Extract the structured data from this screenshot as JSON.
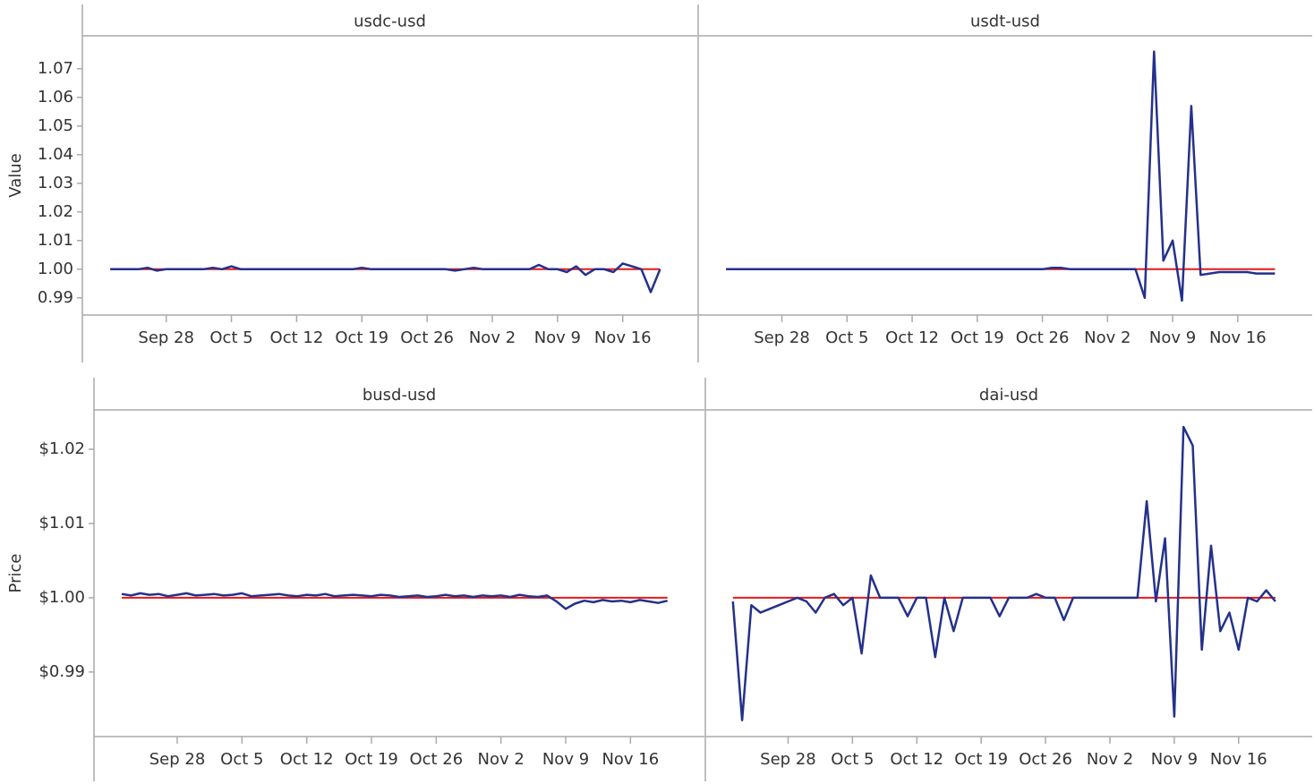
{
  "chart_data": [
    {
      "type": "line",
      "title": "usdc-usd",
      "ylabel": "Value",
      "color": "#24318b",
      "reference": 1,
      "reference_color": "#e41a1c",
      "x": [
        "Sep 22",
        "Sep 23",
        "Sep 24",
        "Sep 25",
        "Sep 26",
        "Sep 27",
        "Sep 28",
        "Sep 29",
        "Sep 30",
        "Oct 1",
        "Oct 2",
        "Oct 3",
        "Oct 4",
        "Oct 5",
        "Oct 6",
        "Oct 7",
        "Oct 8",
        "Oct 9",
        "Oct 10",
        "Oct 11",
        "Oct 12",
        "Oct 13",
        "Oct 14",
        "Oct 15",
        "Oct 16",
        "Oct 17",
        "Oct 18",
        "Oct 19",
        "Oct 20",
        "Oct 21",
        "Oct 22",
        "Oct 23",
        "Oct 24",
        "Oct 25",
        "Oct 26",
        "Oct 27",
        "Oct 28",
        "Oct 29",
        "Oct 30",
        "Oct 31",
        "Nov 1",
        "Nov 2",
        "Nov 3",
        "Nov 4",
        "Nov 5",
        "Nov 6",
        "Nov 7",
        "Nov 8",
        "Nov 9",
        "Nov 10",
        "Nov 11",
        "Nov 12",
        "Nov 13",
        "Nov 14",
        "Nov 15",
        "Nov 16",
        "Nov 17",
        "Nov 18",
        "Nov 19",
        "Nov 20"
      ],
      "values": [
        1,
        1,
        1,
        1,
        1.0005,
        0.9995,
        1,
        1,
        1,
        1,
        1,
        1.0005,
        1,
        1.001,
        1,
        1,
        1,
        1,
        1,
        1,
        1,
        1,
        1,
        1,
        1,
        1,
        1,
        1.0005,
        1,
        1,
        1,
        1,
        1,
        1,
        1,
        1,
        1,
        0.9995,
        1,
        1.0005,
        1,
        1,
        1,
        1,
        1,
        1,
        1.0015,
        1,
        1,
        0.999,
        1.001,
        0.998,
        1,
        1,
        0.999,
        1.002,
        1.001,
        1,
        0.992,
        1
      ],
      "xlim": [
        "Sep 19",
        "Nov 24"
      ],
      "xticks": [
        "Sep 28",
        "Oct 5",
        "Oct 12",
        "Oct 19",
        "Oct 26",
        "Nov 2",
        "Nov 9",
        "Nov 16"
      ],
      "ylim": [
        0.984,
        1.0815
      ],
      "yticks": [
        0.99,
        {
          "value": 1,
          "label": "1.00"
        },
        1.01,
        1.02,
        1.03,
        1.04,
        1.05,
        1.06,
        1.07
      ]
    },
    {
      "type": "line",
      "title": "usdt-usd",
      "color": "#24318b",
      "reference": 1,
      "reference_color": "#e41a1c",
      "x": [
        "Sep 22",
        "Sep 23",
        "Sep 24",
        "Sep 25",
        "Sep 26",
        "Sep 27",
        "Sep 28",
        "Sep 29",
        "Sep 30",
        "Oct 1",
        "Oct 2",
        "Oct 3",
        "Oct 4",
        "Oct 5",
        "Oct 6",
        "Oct 7",
        "Oct 8",
        "Oct 9",
        "Oct 10",
        "Oct 11",
        "Oct 12",
        "Oct 13",
        "Oct 14",
        "Oct 15",
        "Oct 16",
        "Oct 17",
        "Oct 18",
        "Oct 19",
        "Oct 20",
        "Oct 21",
        "Oct 22",
        "Oct 23",
        "Oct 24",
        "Oct 25",
        "Oct 26",
        "Oct 27",
        "Oct 28",
        "Oct 29",
        "Oct 30",
        "Oct 31",
        "Nov 1",
        "Nov 2",
        "Nov 3",
        "Nov 4",
        "Nov 5",
        "Nov 6",
        "Nov 7",
        "Nov 8",
        "Nov 9",
        "Nov 10",
        "Nov 11",
        "Nov 12",
        "Nov 13",
        "Nov 14",
        "Nov 15",
        "Nov 16",
        "Nov 17",
        "Nov 18",
        "Nov 19",
        "Nov 20"
      ],
      "values": [
        1,
        1,
        1,
        1,
        1,
        1,
        1,
        1,
        1,
        1,
        1,
        1,
        1,
        1,
        1,
        1,
        1,
        1,
        1,
        1,
        1,
        1,
        1,
        1,
        1,
        1,
        1,
        1,
        1,
        1,
        1,
        1,
        1,
        1,
        1,
        1.0005,
        1.0005,
        1,
        1,
        1,
        1,
        1,
        1,
        1,
        1,
        0.99,
        1.076,
        1.003,
        1.01,
        0.989,
        1.057,
        0.998,
        0.9985,
        0.999,
        0.999,
        0.999,
        0.999,
        0.9985,
        0.9985,
        0.9985
      ],
      "xlim": [
        "Sep 19",
        "Nov 24"
      ],
      "xticks": [
        "Sep 28",
        "Oct 5",
        "Oct 12",
        "Oct 19",
        "Oct 26",
        "Nov 2",
        "Nov 9",
        "Nov 16"
      ],
      "ylim": [
        0.984,
        1.0815
      ]
    },
    {
      "type": "line",
      "title": "busd-usd",
      "ylabel": "Price",
      "color": "#24318b",
      "reference": 1,
      "reference_color": "#e41a1c",
      "x": [
        "Sep 22",
        "Sep 23",
        "Sep 24",
        "Sep 25",
        "Sep 26",
        "Sep 27",
        "Sep 28",
        "Sep 29",
        "Sep 30",
        "Oct 1",
        "Oct 2",
        "Oct 3",
        "Oct 4",
        "Oct 5",
        "Oct 6",
        "Oct 7",
        "Oct 8",
        "Oct 9",
        "Oct 10",
        "Oct 11",
        "Oct 12",
        "Oct 13",
        "Oct 14",
        "Oct 15",
        "Oct 16",
        "Oct 17",
        "Oct 18",
        "Oct 19",
        "Oct 20",
        "Oct 21",
        "Oct 22",
        "Oct 23",
        "Oct 24",
        "Oct 25",
        "Oct 26",
        "Oct 27",
        "Oct 28",
        "Oct 29",
        "Oct 30",
        "Oct 31",
        "Nov 1",
        "Nov 2",
        "Nov 3",
        "Nov 4",
        "Nov 5",
        "Nov 6",
        "Nov 7",
        "Nov 8",
        "Nov 9",
        "Nov 10",
        "Nov 11",
        "Nov 12",
        "Nov 13",
        "Nov 14",
        "Nov 15",
        "Nov 16",
        "Nov 17",
        "Nov 18",
        "Nov 19",
        "Nov 20"
      ],
      "values": [
        1.0005,
        1.0003,
        1.0006,
        1.0004,
        1.0005,
        1.0002,
        1.0004,
        1.0006,
        1.0003,
        1.0004,
        1.0005,
        1.0003,
        1.0004,
        1.0006,
        1.0002,
        1.0003,
        1.0004,
        1.0005,
        1.0003,
        1.0002,
        1.0004,
        1.0003,
        1.0005,
        1.0002,
        1.0003,
        1.0004,
        1.0003,
        1.0002,
        1.0004,
        1.0003,
        1.0001,
        1.0002,
        1.0003,
        1.0001,
        1.0002,
        1.0004,
        1.0002,
        1.0003,
        1.0001,
        1.0003,
        1.0002,
        1.0003,
        1.0001,
        1.0004,
        1.0002,
        1.0001,
        1.0003,
        0.9995,
        0.9985,
        0.9992,
        0.9996,
        0.9994,
        0.9997,
        0.9995,
        0.9996,
        0.9994,
        0.9997,
        0.9995,
        0.9993,
        0.9996
      ],
      "xlim": [
        "Sep 19",
        "Nov 24"
      ],
      "xticks": [
        "Sep 28",
        "Oct 5",
        "Oct 12",
        "Oct 19",
        "Oct 26",
        "Nov 2",
        "Nov 9",
        "Nov 16"
      ],
      "ylim": [
        0.9813,
        1.0253
      ],
      "yticks": [
        {
          "value": 0.99,
          "label": "$0.99"
        },
        {
          "value": 1,
          "label": "$1.00"
        },
        {
          "value": 1.01,
          "label": "$1.01"
        },
        {
          "value": 1.02,
          "label": "$1.02"
        }
      ]
    },
    {
      "type": "line",
      "title": "dai-usd",
      "color": "#24318b",
      "reference": 1,
      "reference_color": "#e41a1c",
      "x": [
        "Sep 22",
        "Sep 23",
        "Sep 24",
        "Sep 25",
        "Sep 26",
        "Sep 27",
        "Sep 28",
        "Sep 29",
        "Sep 30",
        "Oct 1",
        "Oct 2",
        "Oct 3",
        "Oct 4",
        "Oct 5",
        "Oct 6",
        "Oct 7",
        "Oct 8",
        "Oct 9",
        "Oct 10",
        "Oct 11",
        "Oct 12",
        "Oct 13",
        "Oct 14",
        "Oct 15",
        "Oct 16",
        "Oct 17",
        "Oct 18",
        "Oct 19",
        "Oct 20",
        "Oct 21",
        "Oct 22",
        "Oct 23",
        "Oct 24",
        "Oct 25",
        "Oct 26",
        "Oct 27",
        "Oct 28",
        "Oct 29",
        "Oct 30",
        "Oct 31",
        "Nov 1",
        "Nov 2",
        "Nov 3",
        "Nov 4",
        "Nov 5",
        "Nov 6",
        "Nov 7",
        "Nov 8",
        "Nov 9",
        "Nov 10",
        "Nov 11",
        "Nov 12",
        "Nov 13",
        "Nov 14",
        "Nov 15",
        "Nov 16",
        "Nov 17",
        "Nov 18",
        "Nov 19",
        "Nov 20"
      ],
      "values": [
        0.9995,
        0.9835,
        0.999,
        0.998,
        0.9985,
        0.999,
        0.9995,
        1,
        0.9995,
        0.998,
        1,
        1.0005,
        0.999,
        1,
        0.9925,
        1.003,
        1,
        1,
        1,
        0.9975,
        1,
        1,
        0.992,
        1,
        0.9955,
        1,
        1,
        1,
        1,
        0.9975,
        1,
        1,
        1,
        1.0005,
        1,
        1,
        0.997,
        1,
        1,
        1,
        1,
        1,
        1,
        1,
        1,
        1.013,
        0.9995,
        1.008,
        0.984,
        1.023,
        1.0205,
        0.993,
        1.007,
        0.9955,
        0.998,
        0.993,
        1,
        0.9995,
        1.001,
        0.9995
      ],
      "xlim": [
        "Sep 19",
        "Nov 24"
      ],
      "xticks": [
        "Sep 28",
        "Oct 5",
        "Oct 12",
        "Oct 19",
        "Oct 26",
        "Nov 2",
        "Nov 9",
        "Nov 16"
      ],
      "ylim": [
        0.9813,
        1.0253
      ]
    }
  ]
}
